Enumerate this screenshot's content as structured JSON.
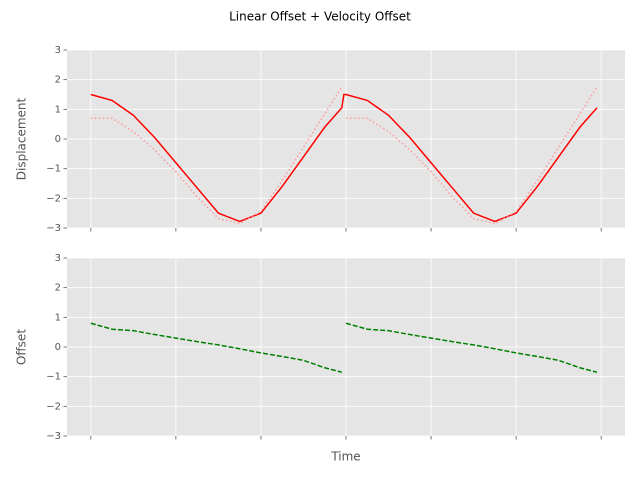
{
  "title": "Linear Offset + Velocity Offset",
  "chart_data": [
    {
      "type": "line",
      "ylabel": "Displacement",
      "x": [
        0,
        0.25,
        0.5,
        0.75,
        1,
        1.25,
        1.5,
        1.75,
        2,
        2.25,
        2.5,
        2.75,
        2.95,
        2.975,
        3,
        3.25,
        3.5,
        3.75,
        4,
        4.25,
        4.5,
        4.75,
        5,
        5.25,
        5.5,
        5.75,
        5.95
      ],
      "series": [
        {
          "color": "#ff0000",
          "style": "solid",
          "values": [
            1.5,
            1.3,
            0.8,
            0.05,
            -0.8,
            -1.65,
            -2.5,
            -2.78,
            -2.5,
            -1.6,
            -0.6,
            0.4,
            1.05,
            1.5,
            1.5,
            1.3,
            0.8,
            0.05,
            -0.8,
            -1.65,
            -2.5,
            -2.78,
            -2.5,
            -1.6,
            -0.6,
            0.4,
            1.05
          ]
        },
        {
          "color": "#ff9a9a",
          "style": "dotted",
          "values": [
            0.7,
            0.7,
            0.25,
            -0.37,
            -1.1,
            -1.95,
            -2.68,
            -2.85,
            -2.44,
            -1.4,
            -0.28,
            0.85,
            1.75,
            null,
            0.7,
            0.7,
            0.25,
            -0.37,
            -1.1,
            -1.95,
            -2.68,
            -2.85,
            -2.44,
            -1.4,
            -0.28,
            0.85,
            1.75
          ]
        }
      ],
      "xlim": [
        -0.28,
        6.28
      ],
      "xticks": [
        0,
        1,
        2,
        3,
        4,
        5,
        6
      ],
      "ylim": [
        -3,
        3
      ],
      "yticks": [
        {
          "value": -3,
          "label": "−3"
        },
        {
          "value": -2,
          "label": "−2"
        },
        {
          "value": -1,
          "label": "−1"
        },
        0,
        1,
        2,
        3
      ],
      "grid": true
    },
    {
      "type": "line",
      "ylabel": "Offset",
      "xlabel": "Time",
      "x": [
        0,
        0.25,
        0.5,
        0.75,
        1,
        1.25,
        1.5,
        1.75,
        2,
        2.25,
        2.5,
        2.75,
        2.95,
        2.975,
        3,
        3.25,
        3.5,
        3.75,
        4,
        4.25,
        4.5,
        4.75,
        5,
        5.25,
        5.5,
        5.75,
        5.95
      ],
      "series": [
        {
          "color": "#008000",
          "style": "dashed",
          "values": [
            0.8,
            0.6,
            0.55,
            0.42,
            0.3,
            0.18,
            0.07,
            -0.06,
            -0.2,
            -0.32,
            -0.45,
            -0.7,
            -0.85,
            null,
            0.8,
            0.6,
            0.55,
            0.42,
            0.3,
            0.18,
            0.07,
            -0.06,
            -0.2,
            -0.32,
            -0.45,
            -0.7,
            -0.85
          ]
        }
      ],
      "xlim": [
        -0.28,
        6.28
      ],
      "xticks": [
        0,
        1,
        2,
        3,
        4,
        5,
        6
      ],
      "ylim": [
        -3,
        3
      ],
      "yticks": [
        {
          "value": -3,
          "label": "−3"
        },
        {
          "value": -2,
          "label": "−2"
        },
        {
          "value": -1,
          "label": "−1"
        },
        0,
        1,
        2,
        3
      ],
      "grid": true
    }
  ]
}
